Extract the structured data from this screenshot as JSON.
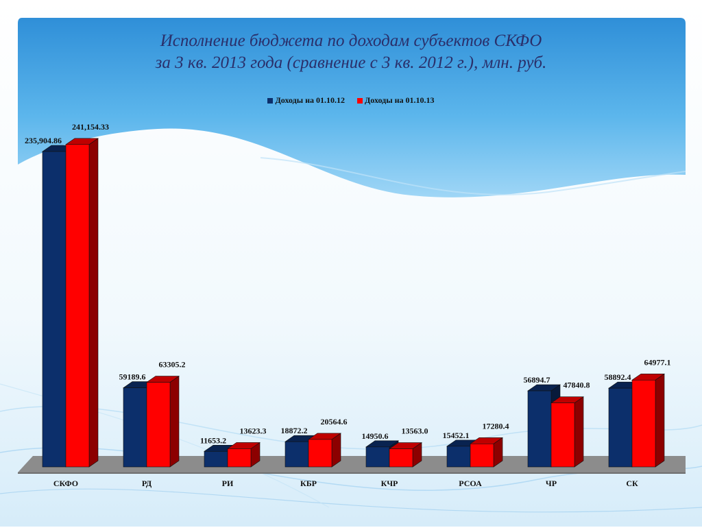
{
  "title": {
    "line1": "Исполнение бюджета по доходам субъектов СКФО",
    "line2": "за 3 кв. 2013 года (сравнение с 3 кв. 2012 г.), млн. руб."
  },
  "colors": {
    "series1": "#0c2f6b",
    "series2": "#ff0000",
    "bg_top": "#3a9ee0",
    "bg_light": "#e6f4fc"
  },
  "chart_data": {
    "type": "bar",
    "title": "Исполнение бюджета по доходам субъектов СКФО за 3 кв. 2013 года (сравнение с 3 кв. 2012 г.), млн. руб.",
    "categories": [
      "СКФО",
      "РД",
      "РИ",
      "КБР",
      "КЧР",
      "РСОА",
      "ЧР",
      "СК"
    ],
    "series": [
      {
        "name": "Доходы на 01.10.12",
        "values": [
          235904.86,
          59189.6,
          11653.2,
          18872.2,
          14950.6,
          15452.1,
          56894.7,
          58892.4
        ],
        "labels": [
          "235,904.86",
          "59189.6",
          "11653.2",
          "18872.2",
          "14950.6",
          "15452.1",
          "56894.7",
          "58892.4"
        ]
      },
      {
        "name": "Доходы на 01.10.13",
        "values": [
          241154.33,
          63305.2,
          13623.3,
          20564.6,
          13563.0,
          17280.4,
          47840.8,
          64977.1
        ],
        "labels": [
          "241,154.33",
          "63305.2",
          "13623.3",
          "20564.6",
          "13563.0",
          "17280.4",
          "47840.8",
          "64977.1"
        ]
      }
    ],
    "ylim": [
      0,
      250000
    ],
    "grid": false,
    "legend_position": "top-center",
    "style": "3d-clustered-column"
  }
}
